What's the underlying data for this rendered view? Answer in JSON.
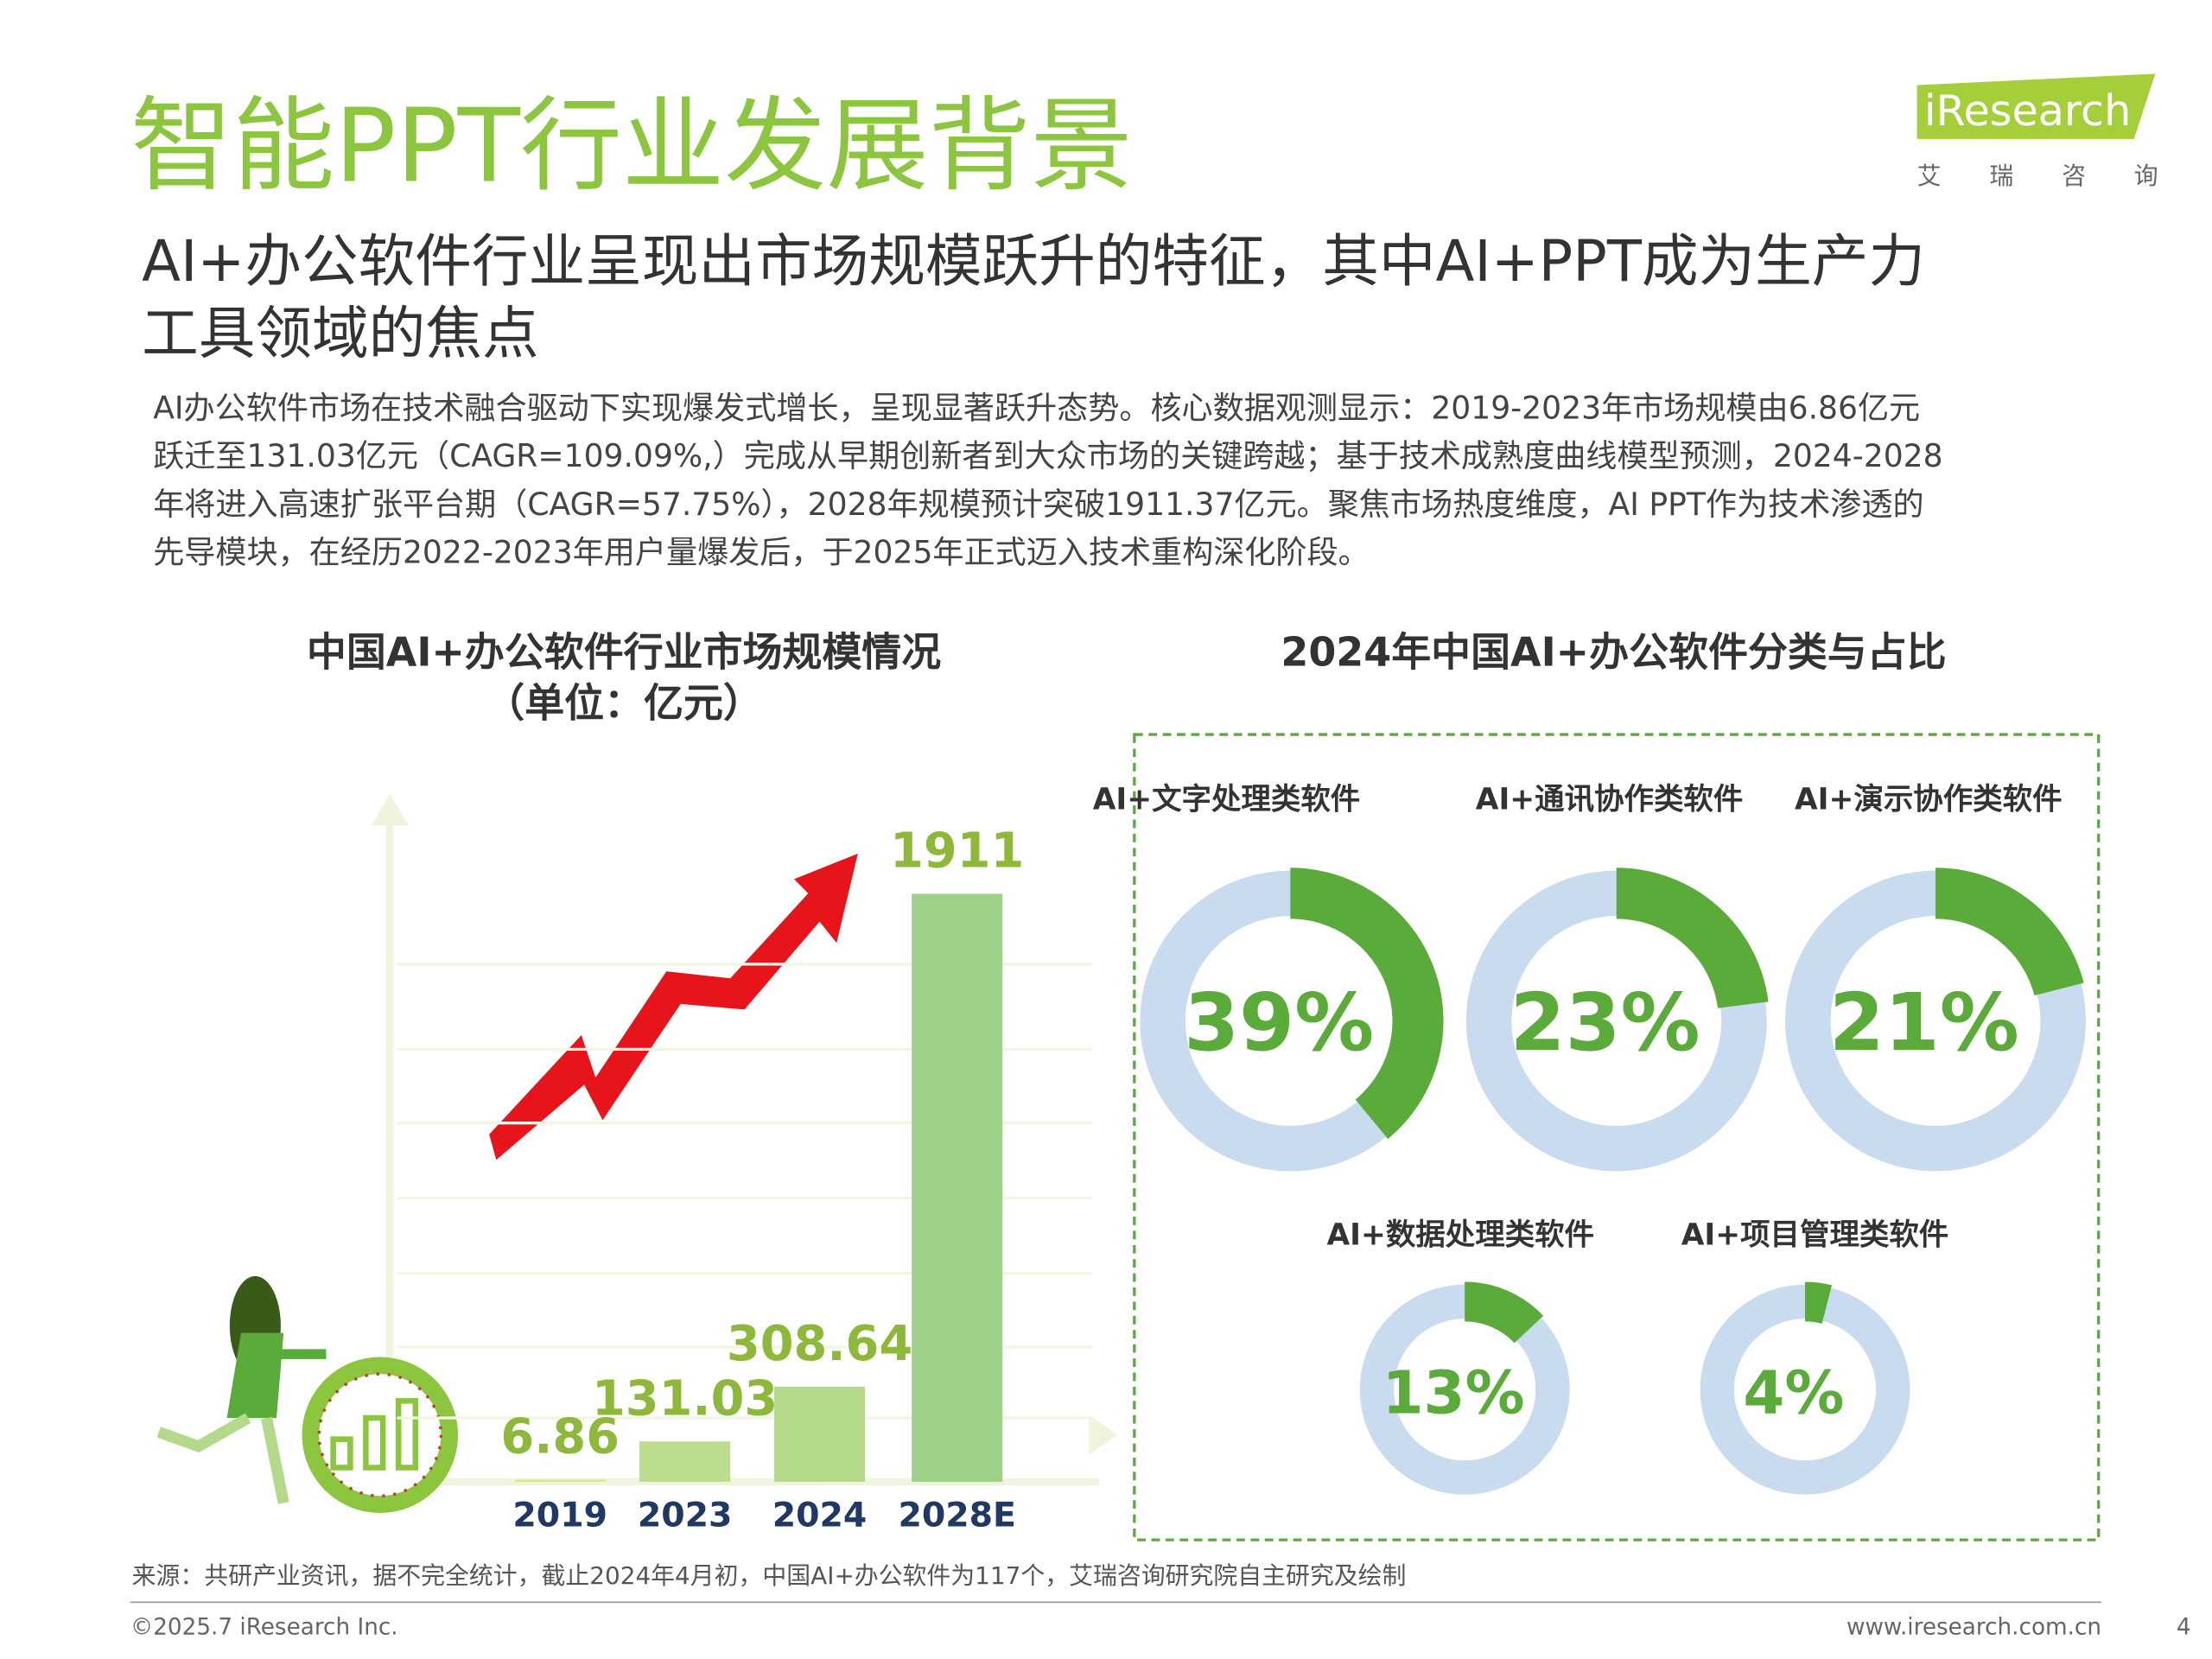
{
  "header": {
    "title": "智能PPT行业发展背景",
    "subtitle": [
      "AI+办公软件行业呈现出市场规模跃升的特征，其中AI+PPT成为生产力",
      "工具领域的焦点"
    ]
  },
  "logo": {
    "name": "iResearch",
    "tagline": "艾 瑞 咨 询"
  },
  "body": [
    "AI办公软件市场在技术融合驱动下实现爆发式增长，呈现显著跃升态势。核心数据观测显示：2019-2023年市场规模由6.86亿元",
    "跃迁至131.03亿元（CAGR=109.09%,）完成从早期创新者到大众市场的关键跨越；基于技术成熟度曲线模型预测，2024-2028",
    "年将进入高速扩张平台期（CAGR=57.75%），2028年规模预计突破1911.37亿元。聚焦市场热度维度，AI PPT作为技术渗透的",
    "先导模块，在经历2022-2023年用户量爆发后，于2025年正式迈入技术重构深化阶段。"
  ],
  "chart_data": [
    {
      "type": "bar",
      "title": [
        "中国AI+办公软件行业市场规模情况",
        "（单位：亿元）"
      ],
      "categories": [
        "2019",
        "2023",
        "2024",
        "2028E"
      ],
      "values": [
        6.86,
        131.03,
        308.64,
        1911
      ],
      "colors": [
        "#d6e88c",
        "#bcdc8e",
        "#b4d98a",
        "#9ed08a"
      ],
      "ylim": [
        0,
        2000
      ]
    },
    {
      "type": "donut",
      "title": "2024年中国AI+办公软件分类与占比",
      "categories": [
        "AI+文字处理类软件",
        "AI+通讯协作类软件",
        "AI+演示协作类软件",
        "AI+数据处理类软件",
        "AI+项目管理类软件"
      ],
      "values": [
        39,
        23,
        21,
        13,
        4
      ],
      "value_labels": [
        "39%",
        "23%",
        "21%",
        "13%",
        "4%"
      ],
      "color": "#5aab3a",
      "track_color": "#c9dbef"
    }
  ],
  "source": "来源：共研产业资讯，据不完全统计，截止2024年4月初，中国AI+办公软件为117个，艾瑞咨询研究院自主研究及绘制",
  "footer": {
    "copyright": "©2025.7 iResearch Inc.",
    "url": "www.iresearch.com.cn",
    "page": "4"
  }
}
